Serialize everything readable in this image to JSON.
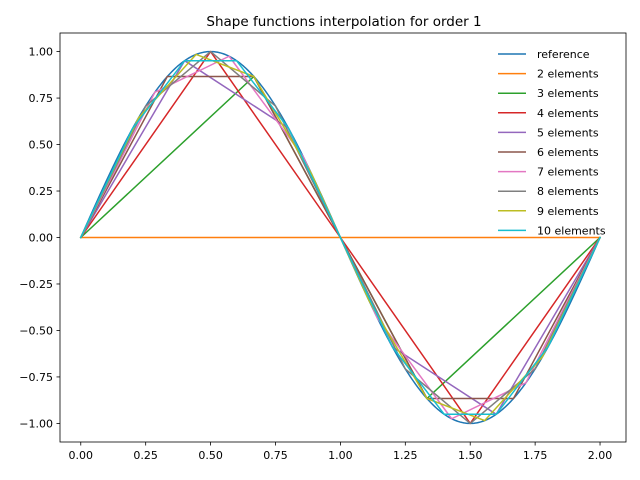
{
  "chart_data": {
    "type": "line",
    "title": "Shape functions interpolation for order 1",
    "xlabel": "",
    "ylabel": "",
    "xlim": [
      -0.08,
      2.1
    ],
    "ylim": [
      -1.1,
      1.1
    ],
    "xticks": [
      0.0,
      0.25,
      0.5,
      0.75,
      1.0,
      1.25,
      1.5,
      1.75,
      2.0
    ],
    "xtick_labels": [
      "0.00",
      "0.25",
      "0.50",
      "0.75",
      "1.00",
      "1.25",
      "1.50",
      "1.75",
      "2.00"
    ],
    "yticks": [
      -1.0,
      -0.75,
      -0.5,
      -0.25,
      0.0,
      0.25,
      0.5,
      0.75,
      1.0
    ],
    "ytick_labels": [
      "−1.00",
      "−0.75",
      "−0.50",
      "−0.25",
      "0.00",
      "0.25",
      "0.50",
      "0.75",
      "1.00"
    ],
    "grid": false,
    "legend_position": "top-right",
    "function": "y = sin(pi * x)",
    "series": [
      {
        "name": "reference",
        "color": "#1f77b4",
        "elements": 0
      },
      {
        "name": "2 elements",
        "color": "#ff7f0e",
        "elements": 2
      },
      {
        "name": "3 elements",
        "color": "#2ca02c",
        "elements": 3
      },
      {
        "name": "4 elements",
        "color": "#d62728",
        "elements": 4
      },
      {
        "name": "5 elements",
        "color": "#9467bd",
        "elements": 5
      },
      {
        "name": "6 elements",
        "color": "#8c564b",
        "elements": 6
      },
      {
        "name": "7 elements",
        "color": "#e377c2",
        "elements": 7
      },
      {
        "name": "8 elements",
        "color": "#7f7f7f",
        "elements": 8
      },
      {
        "name": "9 elements",
        "color": "#bcbd22",
        "elements": 9
      },
      {
        "name": "10 elements",
        "color": "#17becf",
        "elements": 10
      }
    ]
  }
}
